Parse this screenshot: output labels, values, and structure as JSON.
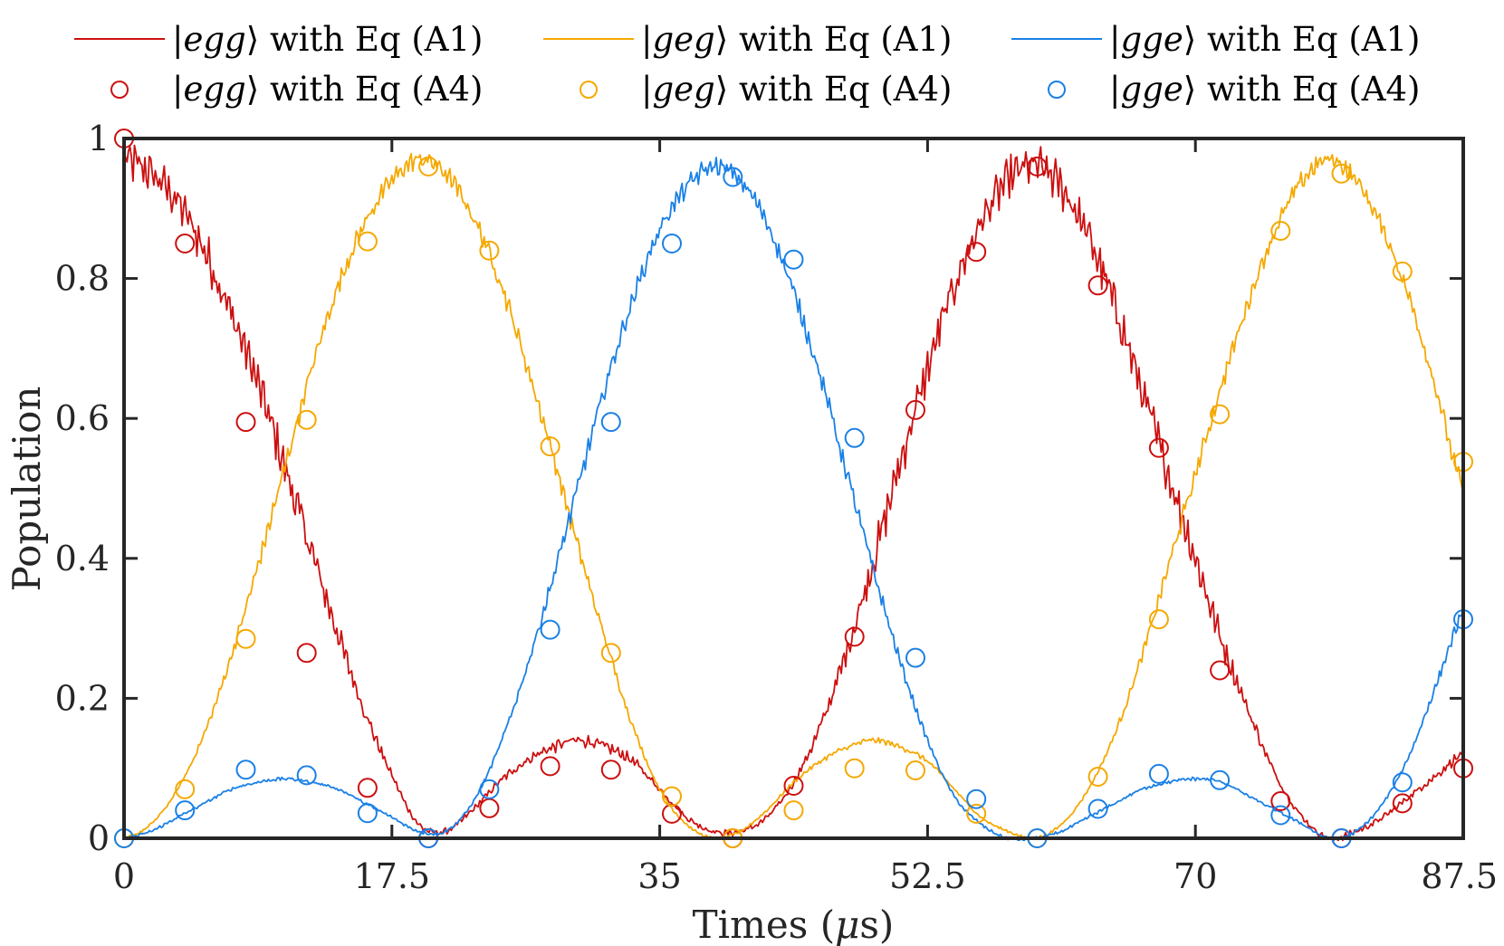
{
  "chart_data": {
    "type": "line",
    "title": "",
    "xlabel": "Times (μs)",
    "ylabel": "Population",
    "xlim": [
      0,
      87.5
    ],
    "ylim": [
      0,
      1
    ],
    "xticks": [
      0,
      17.5,
      35,
      52.5,
      70,
      87.5
    ],
    "xtick_labels": [
      "0",
      "17.5",
      "35",
      "52.5",
      "70",
      "87.5"
    ],
    "yticks": [
      0,
      0.2,
      0.4,
      0.6,
      0.8,
      1
    ],
    "ytick_labels": [
      "0",
      "0.2",
      "0.4",
      "0.6",
      "0.8",
      "1"
    ],
    "grid": false,
    "legend_position": "top",
    "line_x": [
      0,
      1.75,
      3.5,
      5.25,
      7,
      8.75,
      10.5,
      12.25,
      14,
      15.75,
      17.5,
      19.25,
      21,
      22.75,
      24.5,
      26.25,
      28,
      29.75,
      31.5,
      33.25,
      35,
      36.75,
      38.5,
      40.25,
      42,
      43.75,
      45.5,
      47.25,
      49,
      50.75,
      52.5,
      54.25,
      56,
      57.75,
      59.5,
      61.25,
      63,
      64.75,
      66.5,
      68.25,
      70,
      71.75,
      73.5,
      75.25,
      77,
      78.75,
      80.5,
      82.25,
      84,
      85.75,
      87.5
    ],
    "series": [
      {
        "name": "|egg⟩ with Eq (A1)",
        "state": "egg",
        "equation": "(A1)",
        "kind": "line",
        "color": "#cc0f0f",
        "y": [
          0.97,
          0.95,
          0.91,
          0.84,
          0.75,
          0.65,
          0.53,
          0.41,
          0.29,
          0.18,
          0.09,
          0.02,
          0.01,
          0.04,
          0.08,
          0.11,
          0.13,
          0.14,
          0.13,
          0.11,
          0.07,
          0.03,
          0.01,
          0.01,
          0.03,
          0.08,
          0.16,
          0.27,
          0.4,
          0.54,
          0.67,
          0.79,
          0.88,
          0.94,
          0.96,
          0.93,
          0.86,
          0.76,
          0.64,
          0.52,
          0.4,
          0.28,
          0.18,
          0.09,
          0.03,
          0.0,
          0.01,
          0.03,
          0.06,
          0.09,
          0.12
        ]
      },
      {
        "name": "|geg⟩ with Eq (A1)",
        "state": "geg",
        "equation": "(A1)",
        "kind": "line",
        "color": "#f5a800",
        "y": [
          0.0,
          0.02,
          0.07,
          0.15,
          0.26,
          0.39,
          0.53,
          0.67,
          0.79,
          0.88,
          0.94,
          0.97,
          0.95,
          0.89,
          0.8,
          0.68,
          0.55,
          0.41,
          0.28,
          0.16,
          0.07,
          0.02,
          0.0,
          0.01,
          0.04,
          0.08,
          0.11,
          0.13,
          0.14,
          0.13,
          0.11,
          0.07,
          0.03,
          0.01,
          0.0,
          0.02,
          0.07,
          0.15,
          0.26,
          0.39,
          0.52,
          0.65,
          0.77,
          0.87,
          0.94,
          0.97,
          0.94,
          0.87,
          0.77,
          0.64,
          0.5
        ]
      },
      {
        "name": "|gge⟩ with Eq (A1)",
        "state": "gge",
        "equation": "(A1)",
        "kind": "line",
        "color": "#1a80e6",
        "y": [
          0.0,
          0.01,
          0.03,
          0.05,
          0.07,
          0.08,
          0.085,
          0.08,
          0.07,
          0.05,
          0.03,
          0.01,
          0.01,
          0.05,
          0.13,
          0.24,
          0.37,
          0.51,
          0.65,
          0.77,
          0.87,
          0.93,
          0.96,
          0.94,
          0.88,
          0.78,
          0.66,
          0.52,
          0.38,
          0.25,
          0.14,
          0.06,
          0.02,
          0.0,
          0.0,
          0.01,
          0.03,
          0.05,
          0.07,
          0.08,
          0.085,
          0.08,
          0.06,
          0.04,
          0.02,
          0.0,
          0.01,
          0.05,
          0.12,
          0.22,
          0.32
        ]
      }
    ],
    "marker_x": [
      0,
      3.977,
      7.955,
      11.932,
      15.909,
      19.886,
      23.864,
      27.841,
      31.818,
      35.795,
      39.773,
      43.75,
      47.727,
      51.705,
      55.682,
      59.659,
      63.636,
      67.614,
      71.591,
      75.568,
      79.545,
      83.523,
      87.5
    ],
    "marker_series": [
      {
        "name": "|egg⟩ with Eq (A4)",
        "state": "egg",
        "equation": "(A4)",
        "kind": "circle",
        "color": "#cc0f0f",
        "y": [
          1.0,
          0.85,
          0.595,
          0.265,
          0.072,
          0.0,
          0.043,
          0.103,
          0.098,
          0.035,
          0.0,
          0.075,
          0.288,
          0.612,
          0.838,
          0.96,
          0.79,
          0.558,
          0.24,
          0.053,
          0.0,
          0.05,
          0.1
        ]
      },
      {
        "name": "|geg⟩ with Eq (A4)",
        "state": "geg",
        "equation": "(A4)",
        "kind": "circle",
        "color": "#f5a800",
        "y": [
          0.0,
          0.07,
          0.285,
          0.598,
          0.853,
          0.96,
          0.84,
          0.56,
          0.265,
          0.06,
          0.0,
          0.04,
          0.1,
          0.097,
          0.035,
          0.0,
          0.088,
          0.313,
          0.606,
          0.868,
          0.95,
          0.81,
          0.538
        ]
      },
      {
        "name": "|gge⟩ with Eq (A4)",
        "state": "gge",
        "equation": "(A4)",
        "kind": "circle",
        "color": "#1a80e6",
        "y": [
          0.0,
          0.04,
          0.098,
          0.09,
          0.036,
          0.0,
          0.07,
          0.298,
          0.595,
          0.85,
          0.945,
          0.827,
          0.572,
          0.258,
          0.056,
          0.0,
          0.042,
          0.092,
          0.083,
          0.033,
          0.0,
          0.08,
          0.313
        ]
      }
    ]
  },
  "legend": {
    "entries": [
      {
        "state": "egg",
        "prefix": "|",
        "suffix": "⟩ with Eq (A1)"
      },
      {
        "state": "geg",
        "prefix": "|",
        "suffix": "⟩ with Eq (A1)"
      },
      {
        "state": "gge",
        "prefix": "|",
        "suffix": "⟩ with Eq (A1)"
      },
      {
        "state": "egg",
        "prefix": "|",
        "suffix": "⟩ with Eq (A4)"
      },
      {
        "state": "geg",
        "prefix": "|",
        "suffix": "⟩ with Eq (A4)"
      },
      {
        "state": "gge",
        "prefix": "|",
        "suffix": "⟩ with Eq (A4)"
      }
    ]
  },
  "axes": {
    "xlabel_main": "Times (",
    "xlabel_unit": "μ",
    "xlabel_unit2": "s)",
    "ylabel": "Population"
  }
}
